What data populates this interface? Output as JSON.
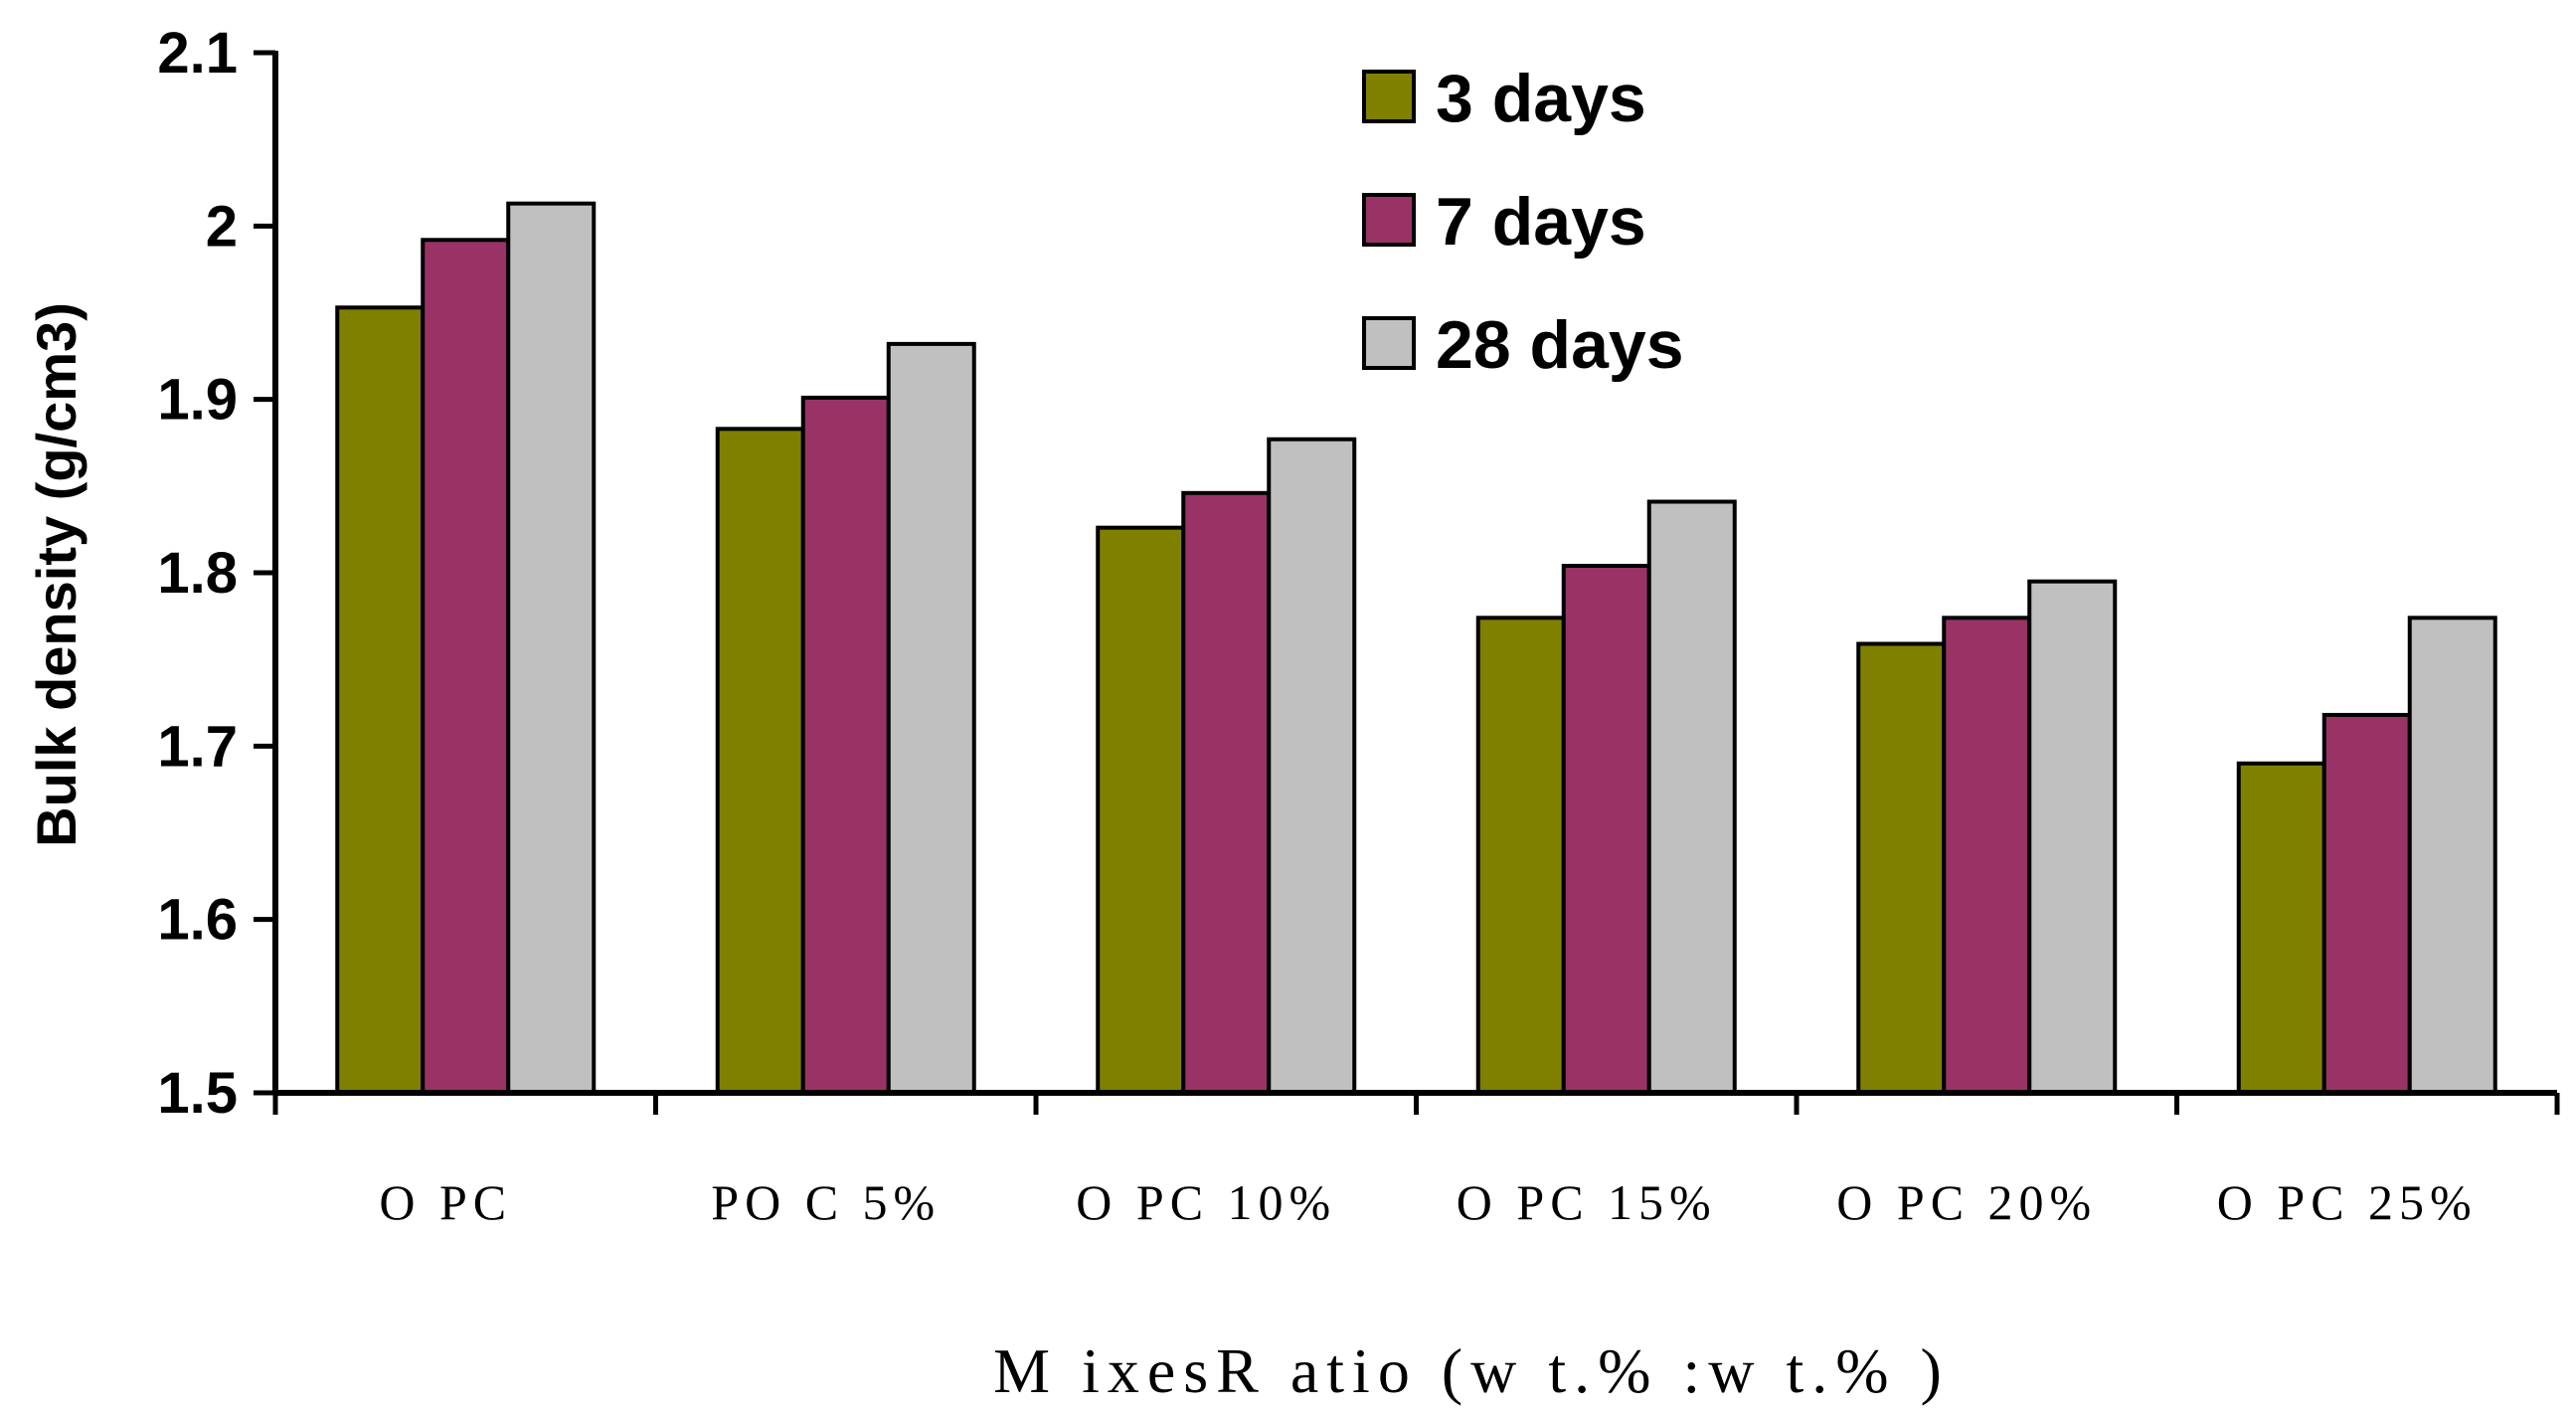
{
  "chart_data": {
    "type": "bar",
    "title": "",
    "xlabel": "M ixesR atio (w t.% :w t.% )",
    "ylabel": "Bulk density (g/cm3)",
    "ylim": [
      1.5,
      2.1
    ],
    "yticks": [
      "1.5",
      "1.6",
      "1.7",
      "1.8",
      "1.9",
      "2",
      "2.1"
    ],
    "categories": [
      "O PC",
      "PO C 5%",
      "O PC 10%",
      "O PC 15%",
      "O PC 20%",
      "O PC 25%"
    ],
    "series": [
      {
        "name": "3 days",
        "color": "#808000",
        "values": [
          1.953,
          1.883,
          1.826,
          1.774,
          1.759,
          1.69
        ]
      },
      {
        "name": "7 days",
        "color": "#993366",
        "values": [
          1.992,
          1.901,
          1.846,
          1.804,
          1.774,
          1.718
        ]
      },
      {
        "name": "28 days",
        "color": "#c0c0c0",
        "values": [
          2.013,
          1.932,
          1.877,
          1.841,
          1.795,
          1.774
        ]
      }
    ],
    "grid": false,
    "legend_position": "top-right"
  }
}
